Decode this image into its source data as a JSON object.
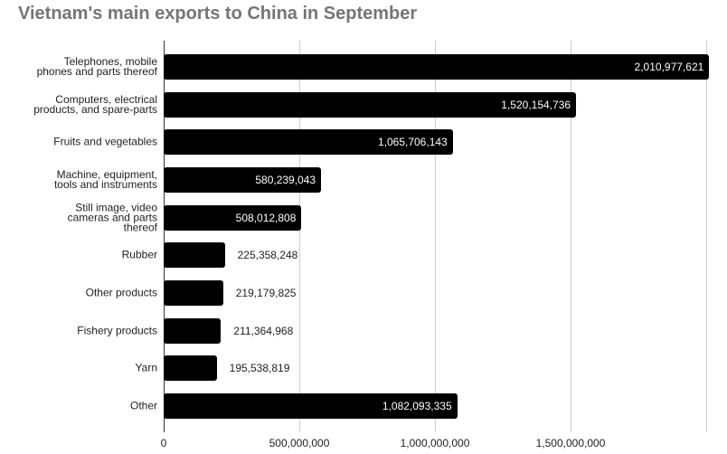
{
  "chart_data": {
    "type": "bar",
    "orientation": "horizontal",
    "title": "Vietnam's main exports to China in September",
    "categories": [
      "Telephones, mobile phones and parts thereof",
      "Computers, electrical products, and spare-parts",
      "Fruits and vegetables",
      "Machine, equipment, tools and instruments",
      "Still image, video cameras and parts thereof",
      "Rubber",
      "Other products",
      "Fishery products",
      "Yarn",
      "Other"
    ],
    "values": [
      2010977621,
      1520154736,
      1065706143,
      580239043,
      508012808,
      225358248,
      219179825,
      211364968,
      195538819,
      1082093335
    ],
    "value_labels": [
      "2,010,977,621",
      "1,520,154,736",
      "1,065,706,143",
      "580,239,043",
      "508,012,808",
      "225,358,248",
      "219,179,825",
      "211,364,968",
      "195,538,819",
      "1,082,093,335"
    ],
    "color": "#000000",
    "xlim": [
      0,
      2000000000
    ],
    "xticks": [
      0,
      {
        "value": 500000000,
        "label": "500,000,000"
      },
      {
        "value": 1000000000,
        "label": "1,000,000,000"
      },
      {
        "value": 1500000000,
        "label": "1,500,000,000"
      }
    ],
    "grid": true
  }
}
